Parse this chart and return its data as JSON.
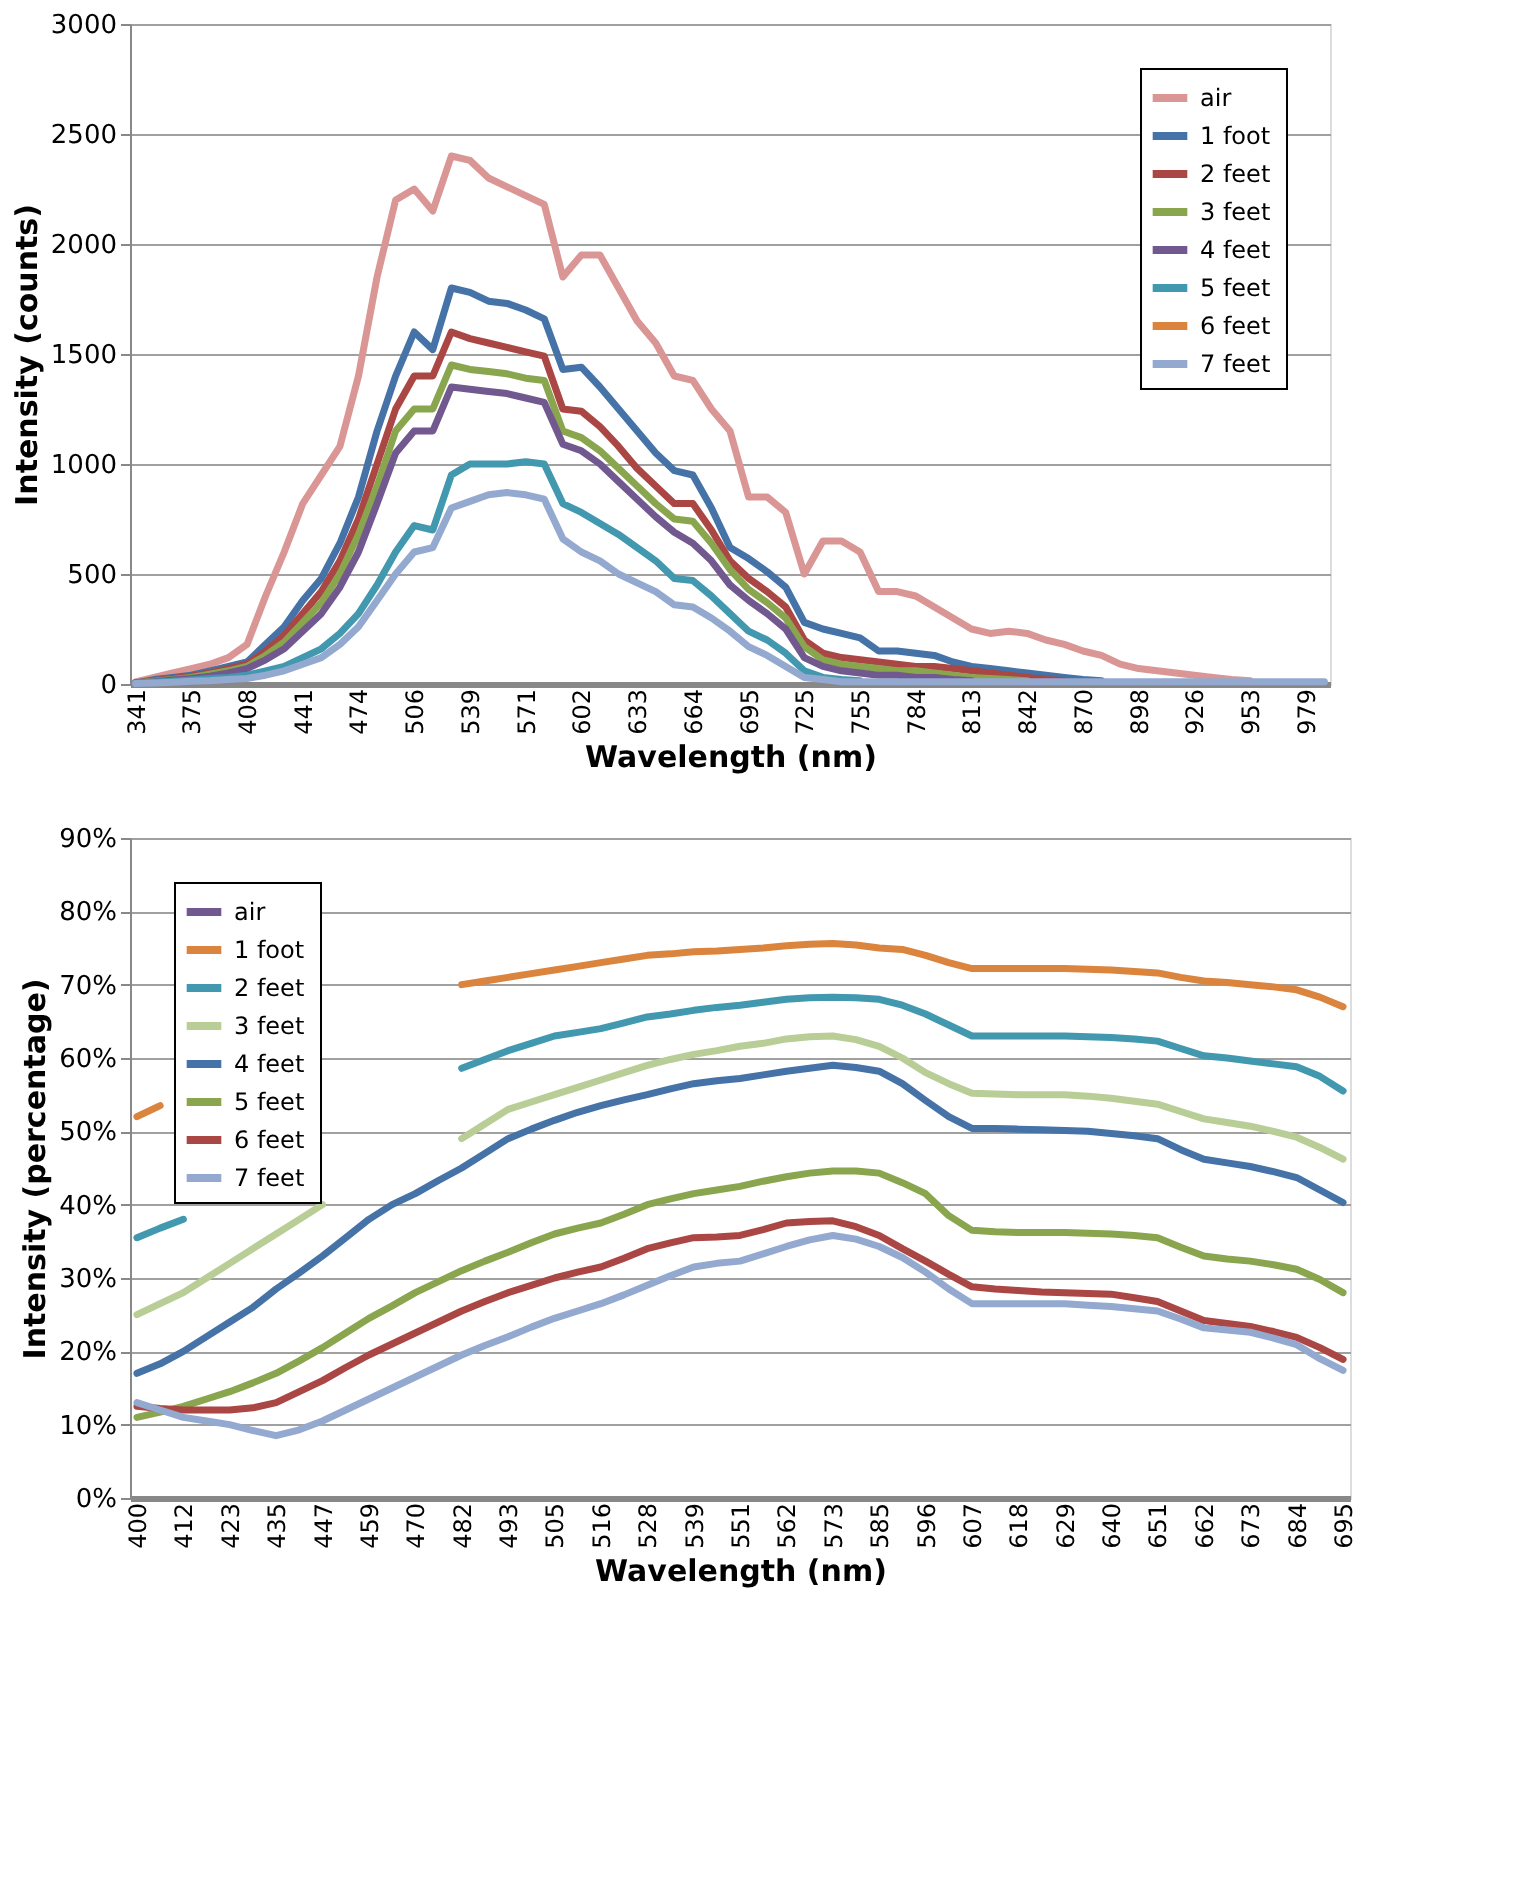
{
  "chart_data": [
    {
      "type": "line",
      "xlabel": "Wavelength (nm)",
      "ylabel": "Intensity (counts)",
      "categories": [
        "341",
        null,
        null,
        "375",
        null,
        null,
        "408",
        null,
        null,
        "441",
        null,
        null,
        "474",
        null,
        null,
        "506",
        null,
        null,
        "539",
        null,
        null,
        "571",
        null,
        null,
        "602",
        null,
        null,
        "633",
        null,
        null,
        "664",
        null,
        null,
        "695",
        null,
        null,
        "725",
        null,
        null,
        "755",
        null,
        null,
        "784",
        null,
        null,
        "813",
        null,
        null,
        "842",
        null,
        null,
        "870",
        null,
        null,
        "898",
        null,
        null,
        "926",
        null,
        null,
        "953",
        null,
        null,
        "979",
        null
      ],
      "ylim": [
        0,
        3000
      ],
      "yticks": [
        0,
        500,
        1000,
        1500,
        2000,
        2500,
        3000
      ],
      "grid": "y",
      "legend": "top right",
      "series": [
        {
          "name": "air",
          "color": "#d99694",
          "values": [
            10,
            30,
            50,
            70,
            90,
            120,
            180,
            400,
            600,
            820,
            950,
            1080,
            1400,
            1850,
            2200,
            2250,
            2150,
            2400,
            2380,
            2300,
            2260,
            2220,
            2180,
            1850,
            1950,
            1950,
            1800,
            1650,
            1550,
            1400,
            1380,
            1250,
            1150,
            850,
            850,
            780,
            500,
            650,
            650,
            600,
            420,
            420,
            400,
            350,
            300,
            250,
            230,
            240,
            230,
            200,
            180,
            150,
            130,
            90,
            70,
            60,
            50,
            40,
            30,
            20,
            15,
            null,
            null,
            null,
            null
          ]
        },
        {
          "name": "1 foot",
          "color": "#4572a7",
          "values": [
            5,
            20,
            30,
            40,
            60,
            80,
            100,
            180,
            260,
            380,
            480,
            640,
            850,
            1150,
            1400,
            1600,
            1520,
            1800,
            1780,
            1740,
            1730,
            1700,
            1660,
            1430,
            1440,
            1350,
            1250,
            1150,
            1050,
            970,
            950,
            800,
            620,
            570,
            510,
            440,
            280,
            250,
            230,
            210,
            150,
            150,
            140,
            130,
            100,
            80,
            70,
            60,
            50,
            40,
            30,
            20,
            15,
            null,
            null,
            null,
            null,
            null,
            null,
            null,
            null,
            null,
            null,
            null,
            null
          ]
        },
        {
          "name": "2 feet",
          "color": "#aa4643",
          "values": [
            5,
            15,
            25,
            35,
            50,
            70,
            90,
            150,
            220,
            320,
            420,
            560,
            750,
            1000,
            1250,
            1400,
            1400,
            1600,
            1570,
            1550,
            1530,
            1510,
            1490,
            1250,
            1240,
            1170,
            1080,
            980,
            900,
            820,
            820,
            700,
            560,
            480,
            420,
            350,
            200,
            140,
            120,
            110,
            100,
            90,
            80,
            80,
            70,
            60,
            50,
            40,
            30,
            20,
            15,
            null,
            null,
            null,
            null,
            null,
            null,
            null,
            null,
            null,
            null,
            null,
            null,
            null,
            null
          ]
        },
        {
          "name": "3 feet",
          "color": "#89a54e",
          "values": [
            5,
            12,
            20,
            30,
            45,
            60,
            80,
            130,
            190,
            280,
            370,
            500,
            680,
            900,
            1150,
            1250,
            1250,
            1450,
            1430,
            1420,
            1410,
            1390,
            1380,
            1150,
            1120,
            1060,
            980,
            900,
            820,
            750,
            740,
            640,
            520,
            430,
            370,
            300,
            170,
            110,
            90,
            80,
            70,
            60,
            60,
            50,
            40,
            30,
            25,
            20,
            15,
            null,
            null,
            null,
            null,
            null,
            null,
            null,
            null,
            null,
            null,
            null,
            null,
            null,
            null,
            null,
            null
          ]
        },
        {
          "name": "4 feet",
          "color": "#71588f",
          "values": [
            5,
            10,
            18,
            25,
            35,
            50,
            70,
            110,
            160,
            240,
            320,
            440,
            600,
            820,
            1050,
            1150,
            1150,
            1350,
            1340,
            1330,
            1320,
            1300,
            1280,
            1090,
            1060,
            1000,
            920,
            840,
            760,
            690,
            640,
            560,
            450,
            380,
            320,
            250,
            120,
            80,
            60,
            50,
            40,
            40,
            30,
            30,
            20,
            15,
            null,
            null,
            null,
            null,
            null,
            null,
            null,
            null,
            null,
            null,
            null,
            null,
            null,
            null,
            null,
            null,
            null,
            null,
            null
          ]
        },
        {
          "name": "5  feet",
          "color": "#4198af",
          "values": [
            3,
            8,
            12,
            18,
            25,
            30,
            40,
            60,
            80,
            120,
            160,
            230,
            320,
            450,
            600,
            720,
            700,
            950,
            1000,
            1000,
            1000,
            1010,
            1000,
            820,
            780,
            730,
            680,
            620,
            560,
            480,
            470,
            400,
            320,
            240,
            200,
            140,
            60,
            30,
            20,
            15,
            null,
            null,
            null,
            null,
            null,
            null,
            null,
            null,
            null,
            null,
            null,
            null,
            null,
            null,
            null,
            null,
            null,
            null,
            null,
            null,
            null,
            null,
            null,
            null,
            null
          ]
        },
        {
          "name": "6 feet",
          "color": "#db843d",
          "values": [
            null,
            null,
            null,
            null,
            null,
            null,
            null,
            null,
            null,
            null,
            null,
            null,
            null,
            null,
            null,
            null,
            null,
            null,
            null,
            null,
            null,
            null,
            null,
            null,
            null,
            null,
            null,
            null,
            null,
            null,
            null,
            null,
            null,
            null,
            null,
            null,
            null,
            null,
            null,
            null,
            null,
            null,
            null,
            null,
            null,
            null,
            null,
            null,
            null,
            null,
            null,
            null,
            null,
            null,
            null,
            null,
            null,
            null,
            null,
            null,
            null,
            null,
            null,
            null,
            null
          ]
        },
        {
          "name": "7 feet",
          "color": "#93a9cf",
          "values": [
            2,
            5,
            8,
            12,
            15,
            20,
            25,
            40,
            60,
            90,
            120,
            180,
            260,
            380,
            500,
            600,
            620,
            800,
            830,
            860,
            870,
            860,
            840,
            660,
            600,
            560,
            500,
            460,
            420,
            360,
            350,
            300,
            240,
            170,
            130,
            80,
            30,
            20,
            10,
            10,
            10,
            10,
            10,
            10,
            10,
            10,
            10,
            10,
            10,
            10,
            10,
            10,
            10,
            10,
            10,
            10,
            10,
            10,
            10,
            10,
            10,
            10,
            10,
            10,
            10
          ]
        }
      ]
    },
    {
      "type": "line",
      "xlabel": "Wavelength (nm)",
      "ylabel": "Intensity  (percentage)",
      "categories": [
        "400",
        null,
        "412",
        null,
        "423",
        null,
        "435",
        null,
        "447",
        null,
        "459",
        null,
        "470",
        null,
        "482",
        null,
        "493",
        null,
        "505",
        null,
        "516",
        null,
        "528",
        null,
        "539",
        null,
        "551",
        null,
        "562",
        null,
        "573",
        null,
        "585",
        null,
        "596",
        null,
        "607",
        null,
        "618",
        null,
        "629",
        null,
        "640",
        null,
        "651",
        null,
        "662",
        null,
        "673",
        null,
        "684",
        null,
        "695"
      ],
      "ylim": [
        0,
        90
      ],
      "yticks": [
        {
          "value": 0,
          "label": "0%"
        },
        {
          "value": 10,
          "label": "10%"
        },
        {
          "value": 20,
          "label": "20%"
        },
        {
          "value": 30,
          "label": "30%"
        },
        {
          "value": 40,
          "label": "40%"
        },
        {
          "value": 50,
          "label": "50%"
        },
        {
          "value": 60,
          "label": "60%"
        },
        {
          "value": 70,
          "label": "70%"
        },
        {
          "value": 80,
          "label": "80%"
        },
        {
          "value": 90,
          "label": "90%"
        }
      ],
      "grid": "y",
      "legend": "top left",
      "series": [
        {
          "name": "air",
          "color": "#71588f",
          "values": [
            null,
            null,
            null,
            null,
            null,
            null,
            null,
            null,
            null,
            null,
            null,
            null,
            null,
            null,
            null,
            null,
            null,
            null,
            null,
            null,
            null,
            null,
            null,
            null,
            null,
            null,
            null,
            null,
            null,
            null,
            null,
            null,
            null,
            null,
            null,
            null,
            null,
            null,
            null,
            null,
            null,
            null,
            null,
            null,
            null,
            null,
            null,
            null,
            null,
            null,
            null,
            null,
            null
          ]
        },
        {
          "name": "1 foot",
          "color": "#db843d",
          "values": [
            52,
            53.5,
            null,
            null,
            null,
            null,
            null,
            null,
            null,
            null,
            null,
            null,
            null,
            null,
            70,
            70.5,
            71,
            71.5,
            72,
            72.5,
            73,
            73.5,
            74,
            74.2,
            74.5,
            74.6,
            74.8,
            75,
            75.3,
            75.5,
            75.6,
            75.4,
            75,
            74.8,
            74,
            73,
            72.2,
            72.2,
            72.2,
            72.2,
            72.2,
            72.1,
            72,
            71.8,
            71.6,
            71,
            70.5,
            70.3,
            70,
            69.7,
            69.3,
            68.3,
            67
          ]
        },
        {
          "name": "2 feet",
          "color": "#4198af",
          "values": [
            35.5,
            36.8,
            38,
            null,
            null,
            null,
            null,
            null,
            null,
            null,
            null,
            null,
            null,
            null,
            58.6,
            59.8,
            61,
            62,
            63,
            63.5,
            64,
            64.8,
            65.6,
            66,
            66.5,
            66.9,
            67.2,
            67.6,
            68,
            68.2,
            68.3,
            68.2,
            68,
            67.2,
            66,
            64.5,
            63,
            63,
            63,
            63,
            63,
            62.9,
            62.8,
            62.6,
            62.3,
            61.3,
            60.3,
            60,
            59.6,
            59.2,
            58.8,
            57.5,
            55.5
          ]
        },
        {
          "name": "3 feet",
          "color": "#b9cd96",
          "values": [
            25,
            26.5,
            28,
            30,
            32,
            34,
            36,
            38,
            40,
            null,
            null,
            null,
            null,
            null,
            49,
            51,
            53,
            54,
            55,
            56,
            57,
            58,
            59,
            59.8,
            60.5,
            61,
            61.6,
            62,
            62.6,
            62.9,
            63,
            62.5,
            61.6,
            60,
            58,
            56.5,
            55.2,
            55.1,
            55,
            55,
            55,
            54.8,
            54.5,
            54.1,
            53.7,
            52.7,
            51.7,
            51.2,
            50.7,
            50,
            49.2,
            47.8,
            46.2
          ]
        },
        {
          "name": "4 feet",
          "color": "#4572a7",
          "values": [
            17,
            18.3,
            20,
            22,
            24,
            26,
            28.5,
            30.7,
            33,
            35.5,
            38,
            40,
            41.5,
            43.3,
            45,
            47,
            49,
            50.3,
            51.5,
            52.6,
            53.5,
            54.3,
            55,
            55.8,
            56.5,
            56.9,
            57.2,
            57.7,
            58.2,
            58.6,
            59,
            58.7,
            58.2,
            56.5,
            54.2,
            52,
            50.4,
            50.4,
            50.3,
            50.2,
            50.1,
            50,
            49.7,
            49.4,
            49,
            47.5,
            46.2,
            45.7,
            45.2,
            44.5,
            43.7,
            42,
            40.3
          ]
        },
        {
          "name": "5  feet",
          "color": "#89a54e",
          "values": [
            11,
            11.7,
            12.5,
            13.5,
            14.5,
            15.7,
            17,
            18.7,
            20.5,
            22.5,
            24.5,
            26.2,
            28,
            29.5,
            31,
            32.3,
            33.5,
            34.8,
            36,
            36.8,
            37.5,
            38.7,
            40,
            40.8,
            41.5,
            42,
            42.5,
            43.2,
            43.8,
            44.3,
            44.6,
            44.6,
            44.3,
            43,
            41.5,
            38.5,
            36.5,
            36.3,
            36.2,
            36.2,
            36.2,
            36.1,
            36,
            35.8,
            35.5,
            34.2,
            33,
            32.6,
            32.3,
            31.8,
            31.2,
            29.8,
            28
          ]
        },
        {
          "name": "6 feet",
          "color": "#aa4643",
          "values": [
            12.5,
            12.2,
            12,
            12,
            12,
            12.3,
            13,
            14.5,
            16,
            17.8,
            19.5,
            21,
            22.5,
            24,
            25.5,
            26.8,
            28,
            29,
            30,
            30.8,
            31.5,
            32.7,
            34,
            34.8,
            35.5,
            35.6,
            35.8,
            36.6,
            37.5,
            37.7,
            37.8,
            37,
            35.8,
            34,
            32.3,
            30.5,
            28.8,
            28.5,
            28.3,
            28.1,
            28,
            27.9,
            27.8,
            27.3,
            26.8,
            25.5,
            24.2,
            23.8,
            23.4,
            22.7,
            21.9,
            20.5,
            18.9
          ]
        },
        {
          "name": "7 feet",
          "color": "#93a9cf",
          "values": [
            13,
            12,
            11,
            10.5,
            10,
            9.2,
            8.5,
            9.3,
            10.5,
            12,
            13.5,
            15,
            16.5,
            18,
            19.5,
            20.8,
            22,
            23.3,
            24.5,
            25.5,
            26.5,
            27.7,
            29,
            30.3,
            31.5,
            32,
            32.3,
            33.3,
            34.3,
            35.2,
            35.8,
            35.3,
            34.3,
            32.8,
            30.8,
            28.5,
            26.5,
            26.5,
            26.5,
            26.5,
            26.5,
            26.3,
            26.1,
            25.8,
            25.5,
            24.4,
            23.2,
            22.9,
            22.6,
            21.8,
            20.9,
            19,
            17.4
          ]
        }
      ]
    }
  ]
}
